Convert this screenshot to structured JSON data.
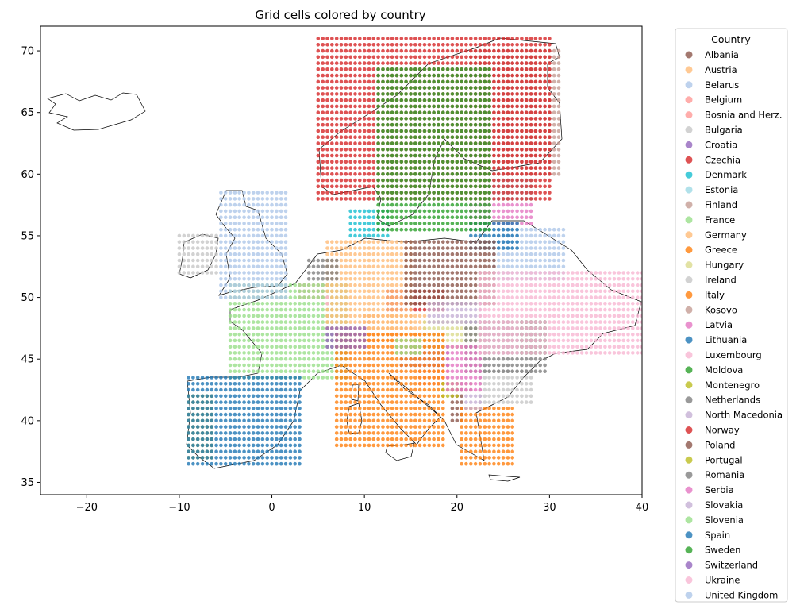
{
  "chart_data": {
    "type": "scatter",
    "title": "Grid cells colored by country",
    "xlabel": "",
    "ylabel": "",
    "xlim": [
      -25,
      40
    ],
    "ylim": [
      34,
      72
    ],
    "xticks": [
      -20,
      -10,
      0,
      10,
      20,
      30,
      40
    ],
    "yticks": [
      35,
      40,
      45,
      50,
      55,
      60,
      65,
      70
    ],
    "grid": false,
    "legend": {
      "title": "Country",
      "placement": "outside-right"
    },
    "series": [
      {
        "name": "Albania",
        "color": "#8c564b",
        "rect": [
          19.4,
          39.7,
          20.5,
          42.5
        ]
      },
      {
        "name": "Austria",
        "color": "#ffbb78",
        "rect": [
          10,
          46.5,
          16.5,
          48.8
        ]
      },
      {
        "name": "Belarus",
        "color": "#aec7e8",
        "rect": [
          24,
          51.5,
          31.5,
          55.5
        ]
      },
      {
        "name": "Belgium",
        "color": "#ff9896",
        "rect": [
          3,
          49.7,
          5.8,
          51.3
        ]
      },
      {
        "name": "Bosnia and Herz.",
        "color": "#ff9896",
        "rect": [
          16,
          42.8,
          19.3,
          45
        ]
      },
      {
        "name": "Bulgaria",
        "color": "#c7c7c7",
        "rect": [
          22.5,
          41.5,
          28,
          44
        ]
      },
      {
        "name": "Croatia",
        "color": "#9467bd",
        "rect": [
          14,
          44.5,
          19,
          46.3
        ]
      },
      {
        "name": "Czechia",
        "color": "#d62728",
        "rect": [
          12.5,
          48.8,
          18.5,
          50.8
        ]
      },
      {
        "name": "Denmark",
        "color": "#17becf",
        "rect": [
          8.3,
          54.8,
          12.5,
          57.3
        ]
      },
      {
        "name": "Estonia",
        "color": "#9edae5",
        "rect": [
          23.5,
          58,
          28,
          59.5
        ]
      },
      {
        "name": "Finland",
        "color": "#c49c94",
        "rect": [
          21.5,
          60,
          31,
          70
        ]
      },
      {
        "name": "France",
        "color": "#98df8a",
        "rect": [
          -4.5,
          43.2,
          8,
          51
        ]
      },
      {
        "name": "Germany",
        "color": "#ffbb78",
        "rect": [
          6,
          47.5,
          15,
          54.8
        ]
      },
      {
        "name": "Greece",
        "color": "#ff7f0e",
        "rect": [
          20.5,
          36.5,
          26,
          41
        ]
      },
      {
        "name": "Hungary",
        "color": "#dbdb8d",
        "rect": [
          16.5,
          46,
          22.5,
          48.3
        ]
      },
      {
        "name": "Ireland",
        "color": "#c7c7c7",
        "rect": [
          -10,
          51.7,
          -6,
          55.3
        ]
      },
      {
        "name": "Italy",
        "color": "#ff7f0e",
        "rect": [
          7,
          38,
          18.5,
          47
        ]
      },
      {
        "name": "Kosovo",
        "color": "#c49c94",
        "rect": [
          20.2,
          42.2,
          21.5,
          43.1
        ]
      },
      {
        "name": "Latvia",
        "color": "#e377c2",
        "rect": [
          21.5,
          56,
          28,
          57.8
        ]
      },
      {
        "name": "Lithuania",
        "color": "#1f77b4",
        "rect": [
          21.5,
          54,
          26.5,
          56.3
        ]
      },
      {
        "name": "Luxembourg",
        "color": "#f7b6d2",
        "rect": [
          5.8,
          49.5,
          6.4,
          50.1
        ]
      },
      {
        "name": "Moldova",
        "color": "#2ca02c",
        "rect": [
          27,
          45.5,
          29.8,
          48.2
        ]
      },
      {
        "name": "Montenegro",
        "color": "#bcbd22",
        "rect": [
          18.5,
          42,
          20,
          43.3
        ]
      },
      {
        "name": "Netherlands",
        "color": "#7f7f7f",
        "rect": [
          4,
          51.3,
          7,
          53.3
        ]
      },
      {
        "name": "North Macedonia",
        "color": "#c5b0d5",
        "rect": [
          20.6,
          41,
          22.8,
          42.3
        ]
      },
      {
        "name": "Norway",
        "color": "#d62728",
        "rect": [
          5,
          58,
          30,
          71
        ]
      },
      {
        "name": "Poland",
        "color": "#8c564b",
        "rect": [
          14.5,
          49.3,
          24,
          54.6
        ]
      },
      {
        "name": "Portugal",
        "color": "#bcbd22",
        "rect": [
          -9.3,
          37,
          -6.5,
          42
        ]
      },
      {
        "name": "Romania",
        "color": "#7f7f7f",
        "rect": [
          21,
          43.8,
          29.5,
          48
        ]
      },
      {
        "name": "Serbia",
        "color": "#e377c2",
        "rect": [
          19,
          42.3,
          22.8,
          46
        ]
      },
      {
        "name": "Slovakia",
        "color": "#c5b0d5",
        "rect": [
          17,
          47.8,
          22.5,
          49.5
        ]
      },
      {
        "name": "Slovenia",
        "color": "#98df8a",
        "rect": [
          13.5,
          45.5,
          16.3,
          46.8
        ]
      },
      {
        "name": "Spain",
        "color": "#1f77b4",
        "rect": [
          -9,
          36.5,
          3,
          43.5
        ]
      },
      {
        "name": "Sweden",
        "color": "#2ca02c",
        "rect": [
          11.5,
          55.5,
          23.5,
          68.5
        ]
      },
      {
        "name": "Switzerland",
        "color": "#9467bd",
        "rect": [
          6,
          45.9,
          10.3,
          47.6
        ]
      },
      {
        "name": "Ukraine",
        "color": "#f7b6d2",
        "rect": [
          22.5,
          45.5,
          40,
          52
        ]
      },
      {
        "name": "United Kingdom",
        "color": "#aec7e8",
        "rect": [
          -5.5,
          50,
          1.5,
          58.5
        ]
      }
    ]
  }
}
